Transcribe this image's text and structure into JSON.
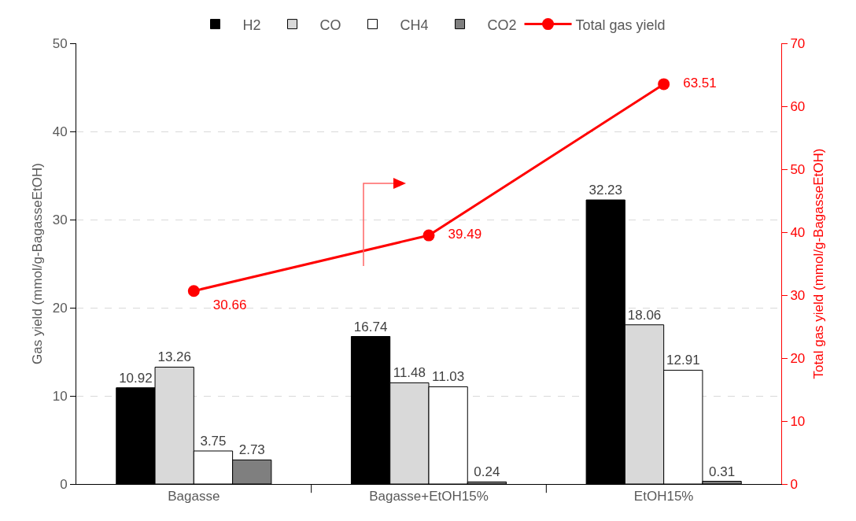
{
  "chart_data": {
    "type": "bar",
    "categories": [
      "Bagasse",
      "Bagasse+EtOH15%",
      "EtOH15%"
    ],
    "ylabel": "Gas yield (mmol/g-BagasseEtOH)",
    "y2label": "Total gas yield (mmol/g-BagasseEtOH)",
    "ylim": [
      0,
      50
    ],
    "yticks": [
      0,
      10,
      20,
      30,
      40,
      50
    ],
    "y2lim": [
      0,
      70
    ],
    "y2ticks": [
      0,
      10,
      20,
      30,
      40,
      50,
      60,
      70
    ],
    "series": [
      {
        "name": "H2",
        "color": "#000000",
        "values": [
          10.92,
          16.74,
          32.23
        ]
      },
      {
        "name": "CO",
        "color": "#d9d9d9",
        "values": [
          13.26,
          11.48,
          18.06
        ]
      },
      {
        "name": "CH4",
        "color": "#ffffff",
        "values": [
          3.75,
          11.03,
          12.91
        ]
      },
      {
        "name": "CO2",
        "color": "#7f7f7f",
        "values": [
          2.73,
          0.24,
          0.31
        ]
      },
      {
        "name": "Total gas yield",
        "type": "line",
        "axis": "y2",
        "color": "#ff0000",
        "marker": "circle",
        "values": [
          30.66,
          39.49,
          63.51
        ]
      }
    ],
    "data_labels": true,
    "grid": "y",
    "legend": "top"
  }
}
